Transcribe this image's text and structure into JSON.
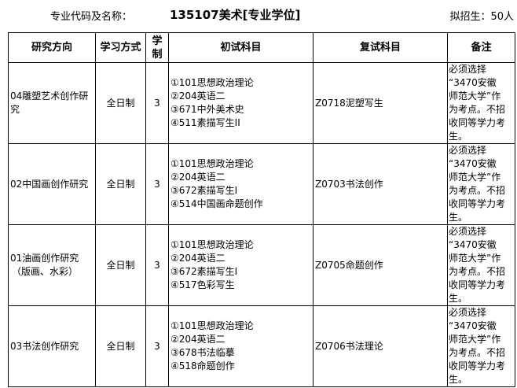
{
  "header": {
    "label": "专业代码及名称：",
    "title": "135107美术[专业学位]",
    "quota": "拟招生：50人"
  },
  "columns": [
    "研究方向",
    "学习方式",
    "学制",
    "初试科目",
    "复试科目",
    "备注"
  ],
  "rows": [
    {
      "direction": [
        "04雕塑艺术创作研究"
      ],
      "mode": "全日制",
      "years": "3",
      "exams": [
        "①101思想政治理论",
        "②204英语二",
        "③671中外美术史",
        "④511素描写生II"
      ],
      "retest": "Z0718泥塑写生",
      "remark": [
        "必须选择",
        "“3470安徽",
        "师范大学”作",
        "为考点。不招",
        "收同等学力考",
        "生。"
      ]
    },
    {
      "direction": [
        "02中国画创作研究"
      ],
      "mode": "全日制",
      "years": "3",
      "exams": [
        "①101思想政治理论",
        "②204英语二",
        "③672素描写生I",
        "④514中国画命题创作"
      ],
      "retest": "Z0703书法创作",
      "remark": [
        "必须选择",
        "“3470安徽",
        "师范大学”作",
        "为考点。不招",
        "收同等学力考",
        "生。"
      ]
    },
    {
      "direction": [
        "01油画创作研究",
        "（版画、水彩）"
      ],
      "mode": "全日制",
      "years": "3",
      "exams": [
        "①101思想政治理论",
        "②204英语二",
        "③672素描写生I",
        "④517色彩写生"
      ],
      "retest": "Z0705命题创作",
      "remark": [
        "必须选择",
        "“3470安徽",
        "师范大学”作",
        "为考点。不招",
        "收同等学力考",
        "生。"
      ]
    },
    {
      "direction": [
        "03书法创作研究"
      ],
      "mode": "全日制",
      "years": "3",
      "exams": [
        "①101思想政治理论",
        "②204英语二",
        "③678书法临摹",
        "④518命题创作"
      ],
      "retest": "Z0706书法理论",
      "remark": [
        "必须选择",
        "“3470安徽",
        "师范大学”作",
        "为考点。不招",
        "收同等学力考",
        "生。"
      ]
    }
  ]
}
